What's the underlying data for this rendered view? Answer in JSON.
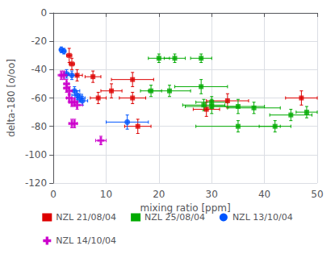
{
  "chart_data": {
    "type": "scatter",
    "xlabel": "mixing ratio [ppm]",
    "ylabel": "delta-180 [o/oo]",
    "xlim": [
      0,
      50
    ],
    "ylim": [
      -120,
      0
    ],
    "xticks": [
      0,
      10,
      20,
      30,
      40,
      50
    ],
    "yticks": [
      0,
      -20,
      -40,
      -60,
      -80,
      -100,
      -120
    ],
    "grid": true,
    "legend": "bottom",
    "series": [
      {
        "name": "NZL 21/08/04",
        "color": "#dd0000",
        "marker": "square",
        "x": [
          3.0,
          3.5,
          4.5,
          7.5,
          8.5,
          11.0,
          15.0,
          15.0,
          16.0,
          29.0,
          33.0,
          47.0
        ],
        "y": [
          -30,
          -36,
          -44,
          -45,
          -60,
          -55,
          -47,
          -60,
          -80,
          -68,
          -62,
          -60
        ],
        "xerr": [
          0.5,
          0.5,
          1.0,
          1.5,
          1.5,
          2.0,
          4.0,
          2.5,
          2.5,
          2.5,
          4.0,
          3.0
        ],
        "yerr": [
          5,
          4,
          4,
          4,
          4,
          5,
          5,
          4,
          5,
          5,
          5,
          5
        ]
      },
      {
        "name": "NZL 25/08/04",
        "color": "#00aa00",
        "marker": "square",
        "x": [
          20.0,
          23.0,
          28.0,
          18.5,
          22.0,
          28.0,
          30.0,
          28.5,
          30.0,
          35.0,
          38.0,
          42.0,
          45.0,
          48.0,
          35.0
        ],
        "y": [
          -32,
          -32,
          -32,
          -55,
          -55,
          -52,
          -63,
          -65,
          -66,
          -66,
          -67,
          -80,
          -72,
          -70,
          -80
        ],
        "xerr": [
          2.0,
          2.0,
          2.0,
          2.0,
          4.0,
          5.0,
          3.0,
          4.0,
          5.0,
          5.0,
          5.0,
          3.0,
          4.0,
          2.0,
          8.0
        ],
        "yerr": [
          3,
          3,
          3,
          4,
          4,
          5,
          4,
          4,
          5,
          5,
          4,
          4,
          4,
          4,
          4
        ]
      },
      {
        "name": "NZL 13/10/04",
        "color": "#0055ff",
        "marker": "circle",
        "x": [
          1.5,
          2.0,
          2.5,
          3.5,
          4.0,
          4.5,
          5.0,
          5.5,
          14.0
        ],
        "y": [
          -26,
          -27,
          -43,
          -44,
          -55,
          -58,
          -60,
          -62,
          -77
        ],
        "xerr": [
          0.3,
          0.3,
          0.5,
          0.8,
          1.0,
          1.0,
          1.0,
          1.0,
          4.0
        ],
        "yerr": [
          2,
          2,
          3,
          3,
          3,
          3,
          3,
          3,
          5
        ]
      },
      {
        "name": "NZL 14/10/04",
        "color": "#cc00cc",
        "marker": "plus",
        "x": [
          1.5,
          2.0,
          2.5,
          2.5,
          3.0,
          3.0,
          3.5,
          4.0,
          4.5,
          3.5,
          4.0,
          9.0
        ],
        "y": [
          -44,
          -44,
          -50,
          -53,
          -55,
          -60,
          -63,
          -63,
          -65,
          -78,
          -78,
          -90
        ],
        "xerr": [
          0.3,
          0.4,
          0.4,
          0.4,
          0.5,
          0.5,
          0.5,
          0.5,
          1.0,
          0.5,
          0.5,
          1.0
        ],
        "yerr": [
          3,
          3,
          3,
          3,
          3,
          3,
          3,
          3,
          3,
          3,
          3,
          3
        ]
      }
    ]
  }
}
